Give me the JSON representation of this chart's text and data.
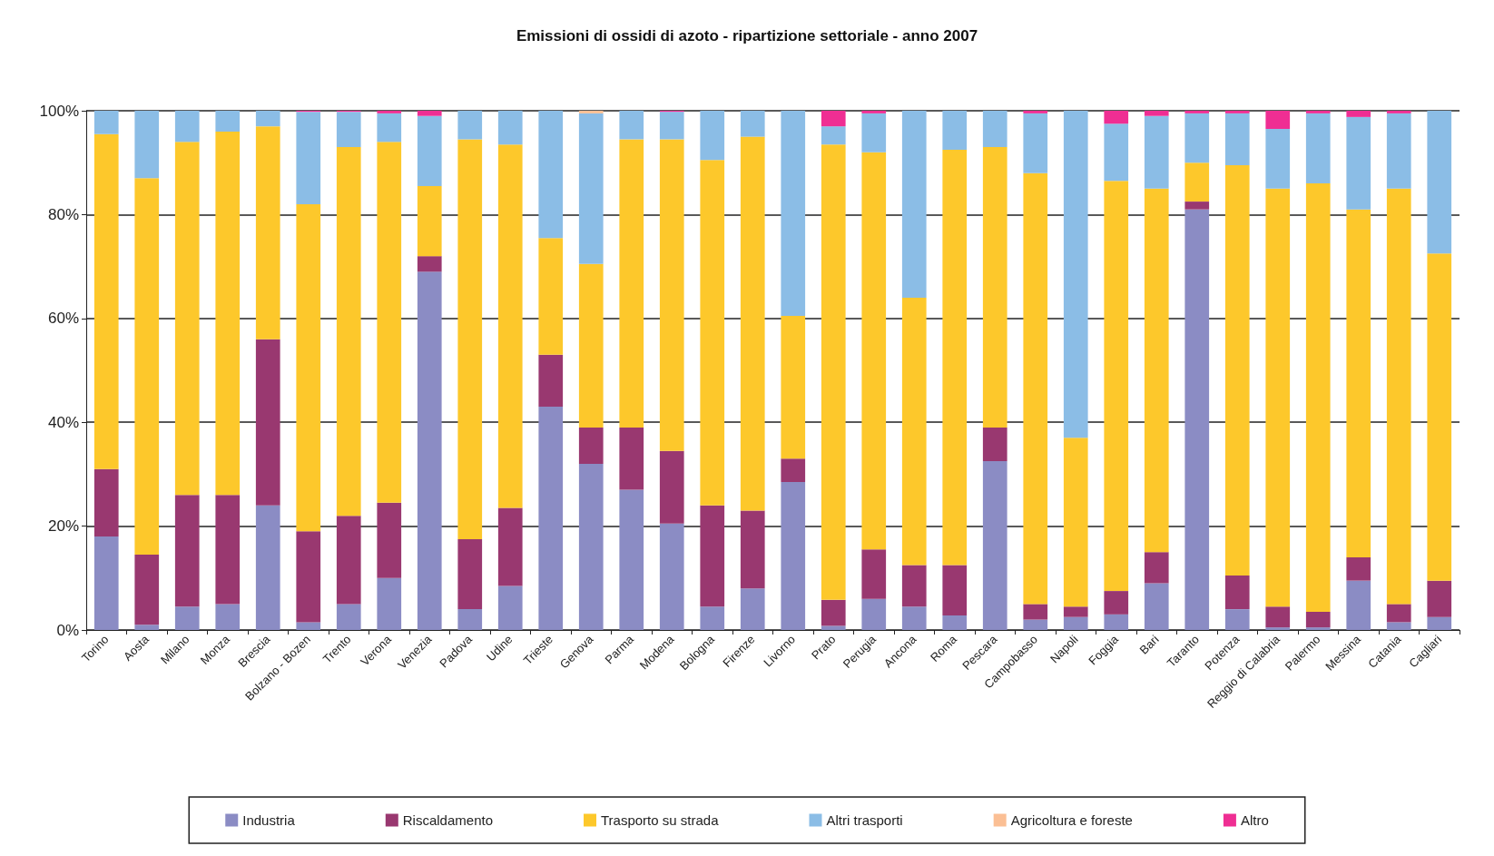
{
  "chart_data": {
    "type": "bar",
    "title": "Emissioni di ossidi di azoto - ripartizione settoriale - anno 2007",
    "stacked": true,
    "grid": "y",
    "legend": "bottom",
    "categories": [
      "Torino",
      "Aosta",
      "Milano",
      "Monza",
      "Brescia",
      "Bolzano - Bozen",
      "Trento",
      "Verona",
      "Venezia",
      "Padova",
      "Udine",
      "Trieste",
      "Genova",
      "Parma",
      "Modena",
      "Bologna",
      "Firenze",
      "Livorno",
      "Prato",
      "Perugia",
      "Ancona",
      "Roma",
      "Pescara",
      "Campobasso",
      "Napoli",
      "Foggia",
      "Bari",
      "Taranto",
      "Potenza",
      "Reggio di Calabria",
      "Palermo",
      "Messina",
      "Catania",
      "Cagliari"
    ],
    "ylim": [
      0,
      100
    ],
    "yticks": [
      {
        "value": 0,
        "label": "0%"
      },
      {
        "value": 20,
        "label": "20%"
      },
      {
        "value": 40,
        "label": "40%"
      },
      {
        "value": 60,
        "label": "60%"
      },
      {
        "value": 80,
        "label": "80%"
      },
      {
        "value": 100,
        "label": "100%"
      }
    ],
    "series": [
      {
        "name": "Industria",
        "color": "#8b8cc4",
        "values": [
          18,
          1,
          4.5,
          5,
          24,
          1.5,
          5,
          10,
          69,
          4,
          8.5,
          43,
          32,
          27,
          20.5,
          4.5,
          8,
          28.5,
          0.8,
          6,
          4.5,
          2.8,
          32.5,
          2,
          2.5,
          3,
          9,
          81,
          4,
          0.5,
          0.5,
          9.5,
          1.5,
          2.5
        ]
      },
      {
        "name": "Riscaldamento",
        "color": "#993870",
        "values": [
          13,
          13.5,
          21.5,
          21,
          32,
          17.5,
          17,
          14.5,
          3,
          13.5,
          15,
          10,
          7,
          12,
          14,
          19.5,
          15,
          4.5,
          5,
          9.5,
          8,
          9.7,
          6.5,
          3,
          2,
          4.5,
          6,
          1.5,
          6.5,
          4,
          3,
          4.5,
          3.5,
          7
        ]
      },
      {
        "name": "Trasporto su strada",
        "color": "#fdc82b",
        "values": [
          64.5,
          72.5,
          68,
          70,
          41,
          63,
          71,
          69.5,
          13.5,
          77,
          70,
          22.5,
          31.5,
          55.5,
          60,
          66.5,
          72,
          27.5,
          87.7,
          76.5,
          51.5,
          80,
          54,
          83,
          32.5,
          79,
          70,
          7.5,
          79,
          80.5,
          82.5,
          67,
          80,
          63
        ]
      },
      {
        "name": "Altri trasporti",
        "color": "#8bbde6",
        "values": [
          4.5,
          13,
          6,
          4,
          3,
          17.8,
          6.8,
          5.5,
          13.5,
          5.5,
          6.5,
          24.5,
          29,
          5.5,
          5.3,
          9.5,
          5,
          39.5,
          3.5,
          7.5,
          36,
          7.5,
          7,
          11.5,
          63,
          11,
          14,
          9.5,
          10,
          11.5,
          13.5,
          17.8,
          14.5,
          27.5
        ]
      },
      {
        "name": "Agricoltura e foreste",
        "color": "#fbbf94",
        "values": [
          0,
          0,
          0,
          0,
          0,
          0,
          0,
          0,
          0,
          0,
          0,
          0,
          0.5,
          0,
          0,
          0,
          0,
          0,
          0,
          0,
          0,
          0,
          0,
          0,
          0,
          0,
          0,
          0,
          0,
          0,
          0,
          0,
          0,
          0
        ]
      },
      {
        "name": "Altro",
        "color": "#ef2e93",
        "values": [
          0,
          0,
          0,
          0,
          0,
          0.2,
          0.2,
          0.5,
          1,
          0,
          0,
          0,
          0,
          0,
          0.2,
          0,
          0,
          0,
          3,
          0.5,
          0,
          0,
          0,
          0.5,
          0,
          2.5,
          1,
          0.5,
          0.5,
          3.5,
          0.5,
          1.2,
          0.5,
          0
        ]
      }
    ]
  }
}
